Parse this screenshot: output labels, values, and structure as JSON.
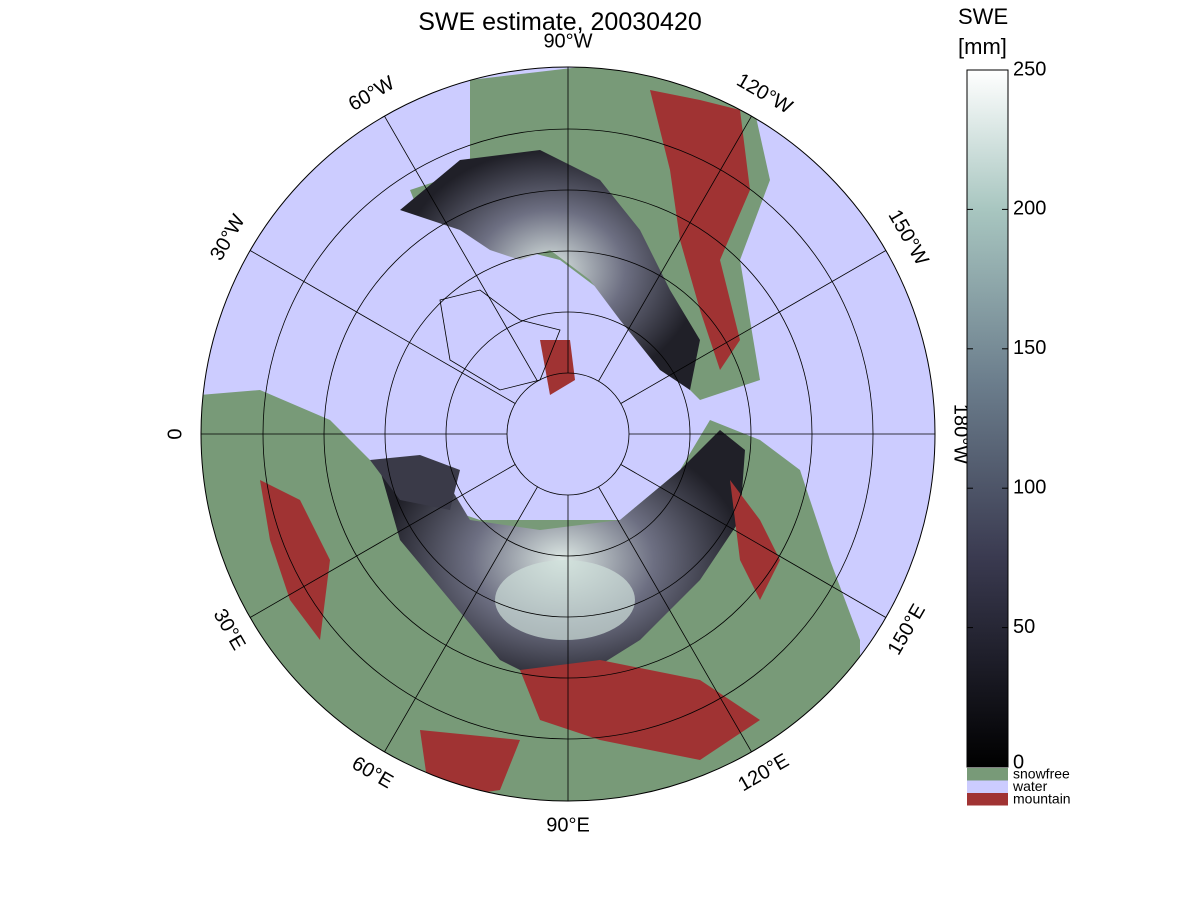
{
  "title": "SWE estimate, 20030420",
  "meridian_labels": [
    "90°W",
    "120°W",
    "150°W",
    "180°W",
    "150°E",
    "120°E",
    "90°E",
    "60°E",
    "30°E",
    "0",
    "30°W",
    "60°W"
  ],
  "colorbar": {
    "label": [
      "SWE",
      "[mm]"
    ],
    "lim": [
      0,
      250
    ],
    "ticks": [
      0,
      50,
      100,
      150,
      200,
      250
    ]
  },
  "legend": [
    {
      "label": "snowfree",
      "color": "#789a78"
    },
    {
      "label": "water",
      "color": "#ccccff"
    },
    {
      "label": "mountain",
      "color": "#a03333"
    }
  ]
}
